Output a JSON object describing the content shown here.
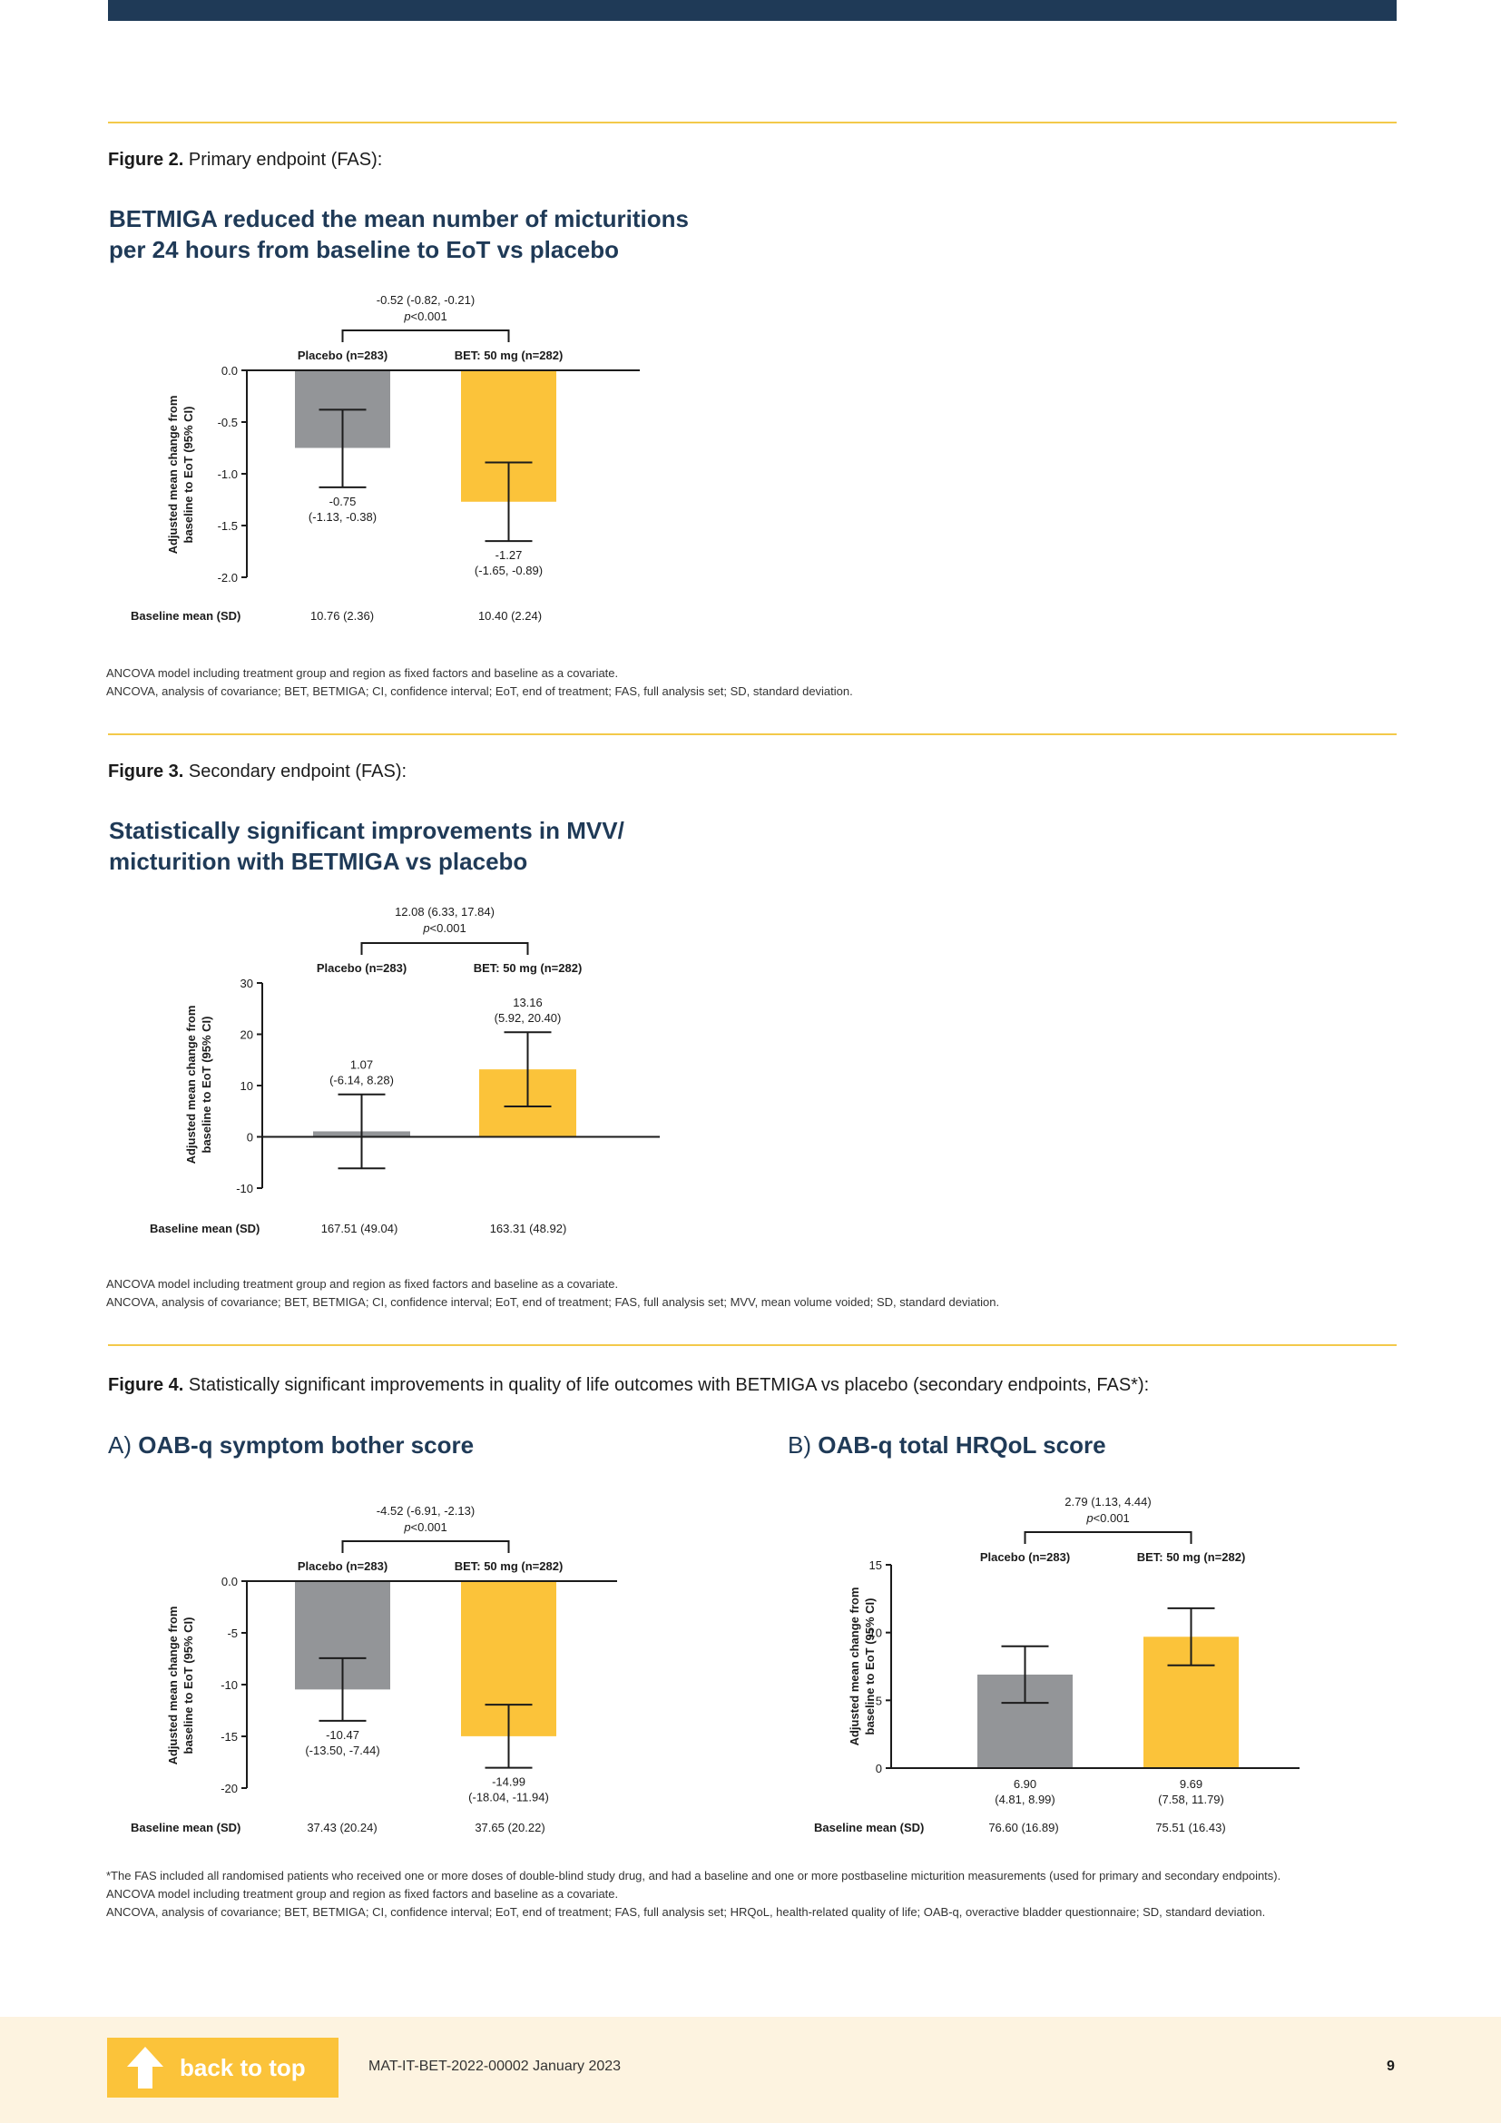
{
  "figures": [
    {
      "caption_label": "Figure 2.",
      "caption_text": "Primary endpoint (FAS):",
      "heading_line1": "BETMIGA reduced the mean number of micturitions",
      "heading_line2": "per 24 hours from baseline to EoT vs placebo",
      "notes": [
        "ANCOVA model including treatment group and region as fixed factors and baseline as a covariate.",
        "ANCOVA, analysis of covariance; BET, BETMIGA; CI, confidence interval; EoT, end of treatment; FAS, full analysis set; SD, standard deviation."
      ]
    },
    {
      "caption_label": "Figure 3.",
      "caption_text": "Secondary endpoint (FAS):",
      "heading_line1": "Statistically significant improvements in MVV/",
      "heading_line2": "micturition with BETMIGA vs placebo",
      "notes": [
        "ANCOVA model including treatment group and region as fixed factors and baseline as a covariate.",
        "ANCOVA, analysis of covariance; BET, BETMIGA; CI, confidence interval; EoT, end of treatment; FAS, full analysis set; MVV, mean volume voided; SD, standard deviation."
      ]
    },
    {
      "caption_label": "Figure 4.",
      "caption_text": "Statistically significant improvements in quality of life outcomes with BETMIGA vs placebo (secondary endpoints, FAS*):",
      "panel_a_prefix": "A)",
      "panel_a_title": "OAB-q symptom bother score",
      "panel_b_prefix": "B)",
      "panel_b_title": "OAB-q total HRQoL score",
      "notes": [
        "*The FAS included all randomised patients who received one or more doses of double-blind study drug, and had a baseline and one or more postbaseline micturition measurements (used for primary and secondary endpoints).",
        "ANCOVA model including treatment group and region as fixed factors and baseline as a covariate.",
        "ANCOVA, analysis of covariance; BET, BETMIGA; CI, confidence interval; EoT, end of treatment; FAS, full analysis set; HRQoL, health-related quality of life; OAB-q, overactive bladder questionnaire; SD, standard deviation."
      ]
    }
  ],
  "chart_data": [
    {
      "type": "bar",
      "categories": [
        "Placebo (n=283)",
        "BET: 50 mg (n=282)"
      ],
      "values": [
        -0.75,
        -1.27
      ],
      "ci_low": [
        -1.13,
        -1.65
      ],
      "ci_high": [
        -0.38,
        -0.89
      ],
      "value_labels": [
        "-0.75",
        "-1.27"
      ],
      "ci_labels": [
        "(-1.13, -0.38)",
        "(-1.65, -0.89)"
      ],
      "ylim": [
        -2.0,
        0.0
      ],
      "yticks": [
        0.0,
        -0.5,
        -1.0,
        -1.5,
        -2.0
      ],
      "ytick_labels": [
        "0.0",
        "-0.5",
        "-1.0",
        "-1.5",
        "-2.0"
      ],
      "ylabel_line1": "Adjusted mean change from",
      "ylabel_line2": "baseline to EoT (95% CI)",
      "comparison_line1": "-0.52 (-0.82, -0.21)",
      "comparison_p_prefix": "p",
      "comparison_p_value": "<0.001",
      "baseline_label": "Baseline mean (SD)",
      "baseline_values": [
        "10.76 (2.36)",
        "10.40 (2.24)"
      ],
      "colors": [
        "#939598",
        "#fbc33a"
      ]
    },
    {
      "type": "bar",
      "categories": [
        "Placebo (n=283)",
        "BET: 50 mg (n=282)"
      ],
      "values": [
        1.07,
        13.16
      ],
      "ci_low": [
        -6.14,
        5.92
      ],
      "ci_high": [
        8.28,
        20.4
      ],
      "value_labels": [
        "1.07",
        "13.16"
      ],
      "ci_labels": [
        "(-6.14, 8.28)",
        "(5.92, 20.40)"
      ],
      "ylim": [
        -10,
        30
      ],
      "yticks": [
        30,
        20,
        10,
        0,
        -10
      ],
      "ytick_labels": [
        "30",
        "20",
        "10",
        "0",
        "-10"
      ],
      "ylabel_line1": "Adjusted mean change from",
      "ylabel_line2": "baseline to EoT (95% CI)",
      "comparison_line1": "12.08 (6.33, 17.84)",
      "comparison_p_prefix": "p",
      "comparison_p_value": "<0.001",
      "baseline_label": "Baseline mean (SD)",
      "baseline_values": [
        "167.51 (49.04)",
        "163.31 (48.92)"
      ],
      "colors": [
        "#939598",
        "#fbc33a"
      ]
    },
    {
      "type": "bar",
      "categories": [
        "Placebo (n=283)",
        "BET: 50 mg (n=282)"
      ],
      "values": [
        -10.47,
        -14.99
      ],
      "ci_low": [
        -13.5,
        -18.04
      ],
      "ci_high": [
        -7.44,
        -11.94
      ],
      "value_labels": [
        "-10.47",
        "-14.99"
      ],
      "ci_labels": [
        "(-13.50, -7.44)",
        "(-18.04, -11.94)"
      ],
      "ylim": [
        -20,
        0
      ],
      "yticks": [
        0,
        -5,
        -10,
        -15,
        -20
      ],
      "ytick_labels": [
        "0.0",
        "-5",
        "-10",
        "-15",
        "-20"
      ],
      "ylabel_line1": "Adjusted mean change from",
      "ylabel_line2": "baseline to EoT (95% CI)",
      "comparison_line1": "-4.52 (-6.91, -2.13)",
      "comparison_p_prefix": "p",
      "comparison_p_value": "<0.001",
      "baseline_label": "Baseline mean (SD)",
      "baseline_values": [
        "37.43 (20.24)",
        "37.65 (20.22)"
      ],
      "colors": [
        "#939598",
        "#fbc33a"
      ]
    },
    {
      "type": "bar",
      "categories": [
        "Placebo (n=283)",
        "BET: 50 mg (n=282)"
      ],
      "values": [
        6.9,
        9.69
      ],
      "ci_low": [
        4.81,
        7.58
      ],
      "ci_high": [
        8.99,
        11.79
      ],
      "value_labels": [
        "6.90",
        "9.69"
      ],
      "ci_labels": [
        "(4.81, 8.99)",
        "(7.58, 11.79)"
      ],
      "ylim": [
        0,
        15
      ],
      "yticks": [
        15,
        10,
        5,
        0
      ],
      "ytick_labels": [
        "15",
        "10",
        "5",
        "0"
      ],
      "ylabel_line1": "Adjusted mean change from",
      "ylabel_line2": "baseline to EoT (95% CI)",
      "comparison_line1": "2.79 (1.13, 4.44)",
      "comparison_p_prefix": "p",
      "comparison_p_value": "<0.001",
      "baseline_label": "Baseline mean (SD)",
      "baseline_values": [
        "76.60 (16.89)",
        "75.51 (16.43)"
      ],
      "colors": [
        "#939598",
        "#fbc33a"
      ]
    }
  ],
  "footer": {
    "back_to_top": "back to top",
    "doc_code": "MAT-IT-BET-2022-00002 January 2023",
    "page_number": "9"
  },
  "colors": {
    "navy": "#1f3a57",
    "gold": "#fbc33a",
    "grey": "#939598",
    "rule": "#f3c94a",
    "footer_bg": "#fdf3e0"
  }
}
